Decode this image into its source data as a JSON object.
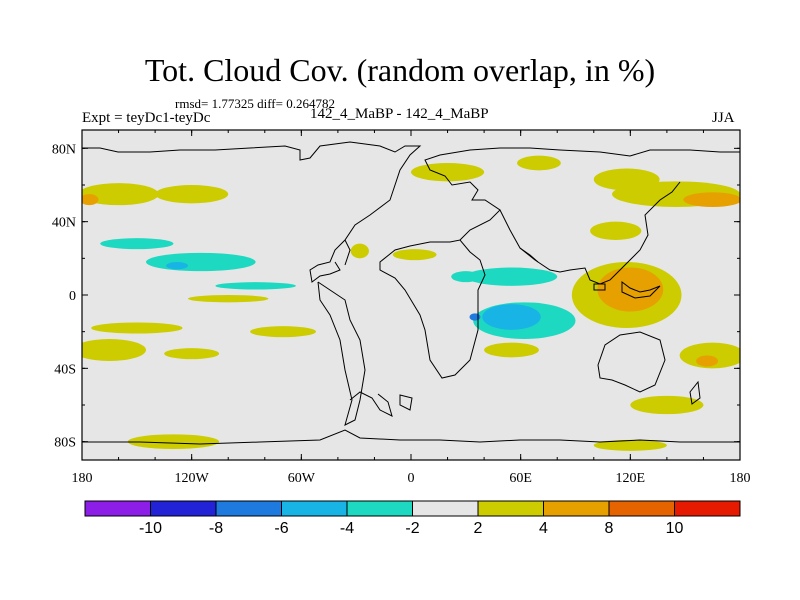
{
  "header": {
    "title": "Tot. Cloud Cov. (random overlap, in %)",
    "stats": "rmsd= 1.77325  diff= 0.264782",
    "experiment": "Expt = teyDc1-teyDc",
    "comparison": "142_4_MaBP - 142_4_MaBP",
    "season": "JJA"
  },
  "chart_data": {
    "type": "heatmap",
    "title": "Tot. Cloud Cov. (random overlap, in %)",
    "xlabel": "",
    "ylabel": "",
    "x_ticks": [
      "180",
      "120W",
      "60W",
      "0",
      "60E",
      "120E",
      "180"
    ],
    "y_ticks": [
      "80N",
      "40N",
      "0",
      "40S",
      "80S"
    ],
    "xlim": [
      -180,
      180
    ],
    "ylim": [
      -90,
      90
    ],
    "colorbar": {
      "levels": [
        -10,
        -8,
        -6,
        -4,
        -2,
        2,
        4,
        8,
        10
      ],
      "tick_labels": [
        "-10",
        "-8",
        "-6",
        "-4",
        "-2",
        "2",
        "4",
        "8",
        "10"
      ],
      "colors": [
        "#8c1ee8",
        "#2222d6",
        "#1f7ae0",
        "#19b4e6",
        "#1ed9c1",
        "#e6e6e6",
        "#cccc00",
        "#e6a000",
        "#e66400",
        "#e61a00"
      ]
    },
    "anomalies": [
      {
        "lon": -160,
        "lat": 55,
        "rx": 22,
        "ry": 6,
        "value": 3
      },
      {
        "lon": -176,
        "lat": 52,
        "rx": 5,
        "ry": 3,
        "value": 5
      },
      {
        "lon": -120,
        "lat": 55,
        "rx": 20,
        "ry": 5,
        "value": 3
      },
      {
        "lon": -150,
        "lat": 28,
        "rx": 20,
        "ry": 3,
        "value": -3
      },
      {
        "lon": -115,
        "lat": 18,
        "rx": 30,
        "ry": 5,
        "value": -3
      },
      {
        "lon": -128,
        "lat": 16,
        "rx": 6,
        "ry": 2,
        "value": -5
      },
      {
        "lon": -85,
        "lat": 5,
        "rx": 22,
        "ry": 2,
        "value": -2.5
      },
      {
        "lon": -100,
        "lat": -2,
        "rx": 22,
        "ry": 2,
        "value": 2.5
      },
      {
        "lon": -150,
        "lat": -18,
        "rx": 25,
        "ry": 3,
        "value": 2.5
      },
      {
        "lon": -165,
        "lat": -30,
        "rx": 20,
        "ry": 6,
        "value": 3
      },
      {
        "lon": -120,
        "lat": -32,
        "rx": 15,
        "ry": 3,
        "value": 2.5
      },
      {
        "lon": -70,
        "lat": -20,
        "rx": 18,
        "ry": 3,
        "value": 2.5
      },
      {
        "lon": -28,
        "lat": 24,
        "rx": 5,
        "ry": 4,
        "value": 3
      },
      {
        "lon": 2,
        "lat": 22,
        "rx": 12,
        "ry": 3,
        "value": 3
      },
      {
        "lon": 30,
        "lat": 10,
        "rx": 8,
        "ry": 3,
        "value": -3
      },
      {
        "lon": 55,
        "lat": 10,
        "rx": 25,
        "ry": 5,
        "value": -3
      },
      {
        "lon": 62,
        "lat": -14,
        "rx": 28,
        "ry": 10,
        "value": -3
      },
      {
        "lon": 55,
        "lat": -12,
        "rx": 16,
        "ry": 7,
        "value": -5
      },
      {
        "lon": 35,
        "lat": -12,
        "rx": 3,
        "ry": 2,
        "value": -7
      },
      {
        "lon": 55,
        "lat": -30,
        "rx": 15,
        "ry": 4,
        "value": 2.5
      },
      {
        "lon": 20,
        "lat": 67,
        "rx": 20,
        "ry": 5,
        "value": 3
      },
      {
        "lon": 70,
        "lat": 72,
        "rx": 12,
        "ry": 4,
        "value": 3
      },
      {
        "lon": 118,
        "lat": 63,
        "rx": 18,
        "ry": 6,
        "value": 3
      },
      {
        "lon": 112,
        "lat": 35,
        "rx": 14,
        "ry": 5,
        "value": 3
      },
      {
        "lon": 145,
        "lat": 55,
        "rx": 35,
        "ry": 7,
        "value": 3
      },
      {
        "lon": 165,
        "lat": 52,
        "rx": 16,
        "ry": 4,
        "value": 5
      },
      {
        "lon": 118,
        "lat": 0,
        "rx": 30,
        "ry": 18,
        "value": 3
      },
      {
        "lon": 120,
        "lat": 3,
        "rx": 18,
        "ry": 12,
        "value": 5
      },
      {
        "lon": 165,
        "lat": -33,
        "rx": 18,
        "ry": 7,
        "value": 3
      },
      {
        "lon": 162,
        "lat": -36,
        "rx": 6,
        "ry": 3,
        "value": 5
      },
      {
        "lon": 140,
        "lat": -60,
        "rx": 20,
        "ry": 5,
        "value": 3
      },
      {
        "lon": -130,
        "lat": -80,
        "rx": 25,
        "ry": 4,
        "value": 2.5
      },
      {
        "lon": 120,
        "lat": -82,
        "rx": 20,
        "ry": 3,
        "value": 2.5
      }
    ]
  }
}
